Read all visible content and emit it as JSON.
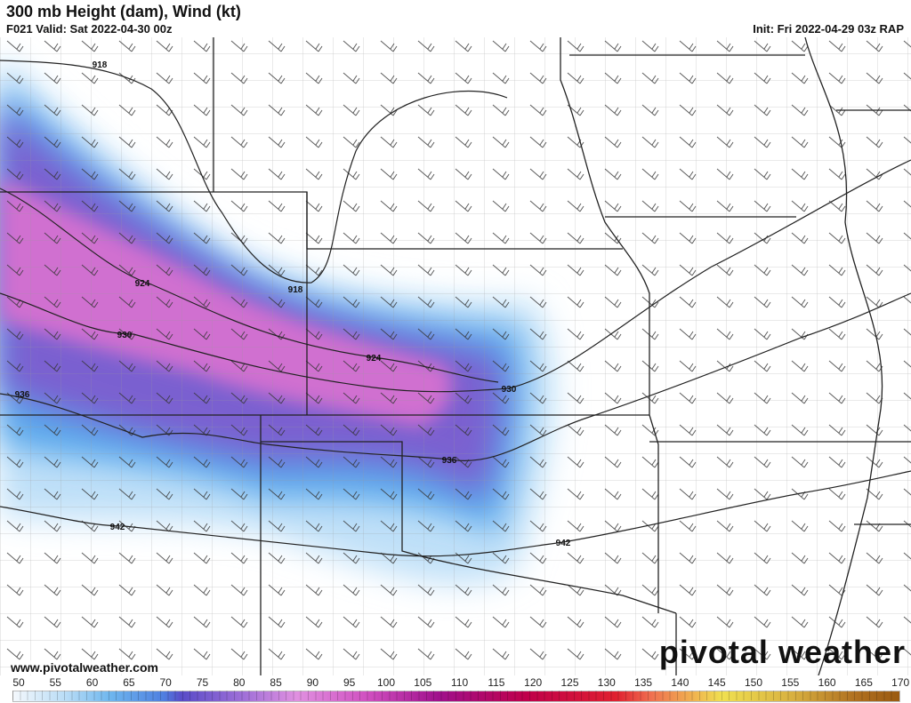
{
  "header": {
    "title": "300 mb Height (dam), Wind (kt)",
    "valid": "F021 Valid: Sat 2022-04-30 00z",
    "init": "Init: Fri 2022-04-29 03z RAP"
  },
  "map": {
    "contour_labels": [
      "918",
      "918",
      "924",
      "924",
      "930",
      "930",
      "936",
      "936",
      "942",
      "942"
    ],
    "colors": {
      "core": "#d070d0",
      "purple": "#7a60d0",
      "blue": "#5aa8ec",
      "light": "#bfe0f8"
    }
  },
  "footer": {
    "url": "www.pivotalweather.com",
    "logo": "pivotal weather"
  },
  "colorbar": {
    "unit": "kt",
    "ticks": [
      "50",
      "55",
      "60",
      "65",
      "70",
      "75",
      "80",
      "85",
      "90",
      "95",
      "100",
      "105",
      "110",
      "115",
      "120",
      "125",
      "130",
      "135",
      "140",
      "145",
      "150",
      "155",
      "160",
      "165",
      "170"
    ]
  }
}
